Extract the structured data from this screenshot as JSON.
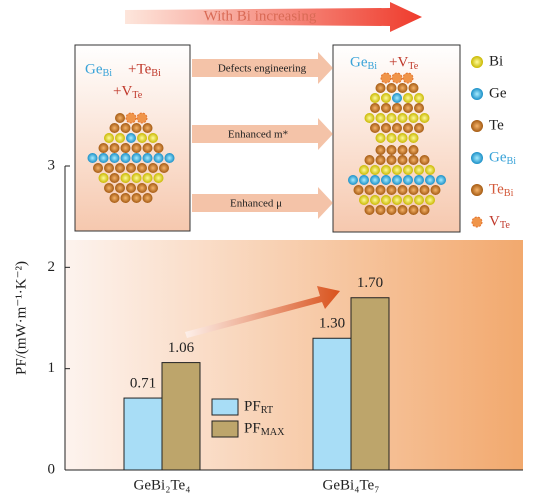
{
  "chart_data": {
    "type": "bar",
    "categories": [
      "GeBi₂Te₄",
      "GeBi₄Te₇"
    ],
    "series": [
      {
        "name": "PFRT",
        "color": "#a8ddf6",
        "values": [
          0.71,
          1.3
        ],
        "value_labels": [
          "0.71",
          "1.30"
        ]
      },
      {
        "name": "PFMAX",
        "color": "#bda56b",
        "values": [
          1.06,
          1.7
        ],
        "value_labels": [
          "1.06",
          "1.70"
        ]
      }
    ],
    "y_label": "PF/(mW·m⁻¹·K⁻²)",
    "ylim": [
      0,
      3
    ],
    "yticks": [
      0,
      1,
      2,
      3
    ],
    "annotations": {
      "trend": "With Bi increasing",
      "left_box": [
        "GeBi",
        "+TeBi",
        "+VTe"
      ],
      "right_box": [
        "GeBi",
        "+VTe"
      ],
      "arrows": [
        "Defects engineering",
        "Enhanced m*",
        "Enhanced μ"
      ],
      "atoms": [
        "Bi",
        "Ge",
        "Te",
        "GeBi",
        "TeBi",
        "VTe"
      ]
    }
  }
}
